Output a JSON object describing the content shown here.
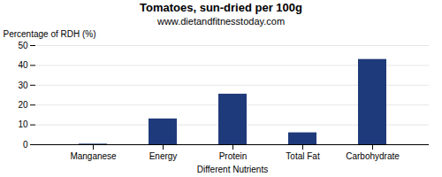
{
  "chart_data": {
    "type": "bar",
    "title": "Tomatoes, sun-dried per 100g",
    "subtitle": "www.dietandfitnesstoday.com",
    "xlabel": "Different Nutrients",
    "ylabel": "Percentage of RDH (%)",
    "categories": [
      "Manganese",
      "Energy",
      "Protein",
      "Total Fat",
      "Carbohydrate"
    ],
    "values": [
      0.3,
      13,
      25.5,
      6,
      43
    ],
    "color": "#1f3a7a",
    "ylim": [
      0,
      50
    ],
    "yticks": [
      0,
      10,
      20,
      30,
      40,
      50
    ],
    "grid": true
  }
}
